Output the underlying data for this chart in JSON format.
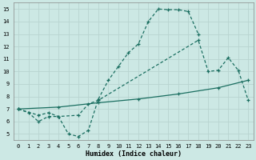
{
  "bg_color": "#cce8e4",
  "grid_color": "#b8d4d0",
  "line_color": "#1a6e60",
  "xlabel": "Humidex (Indice chaleur)",
  "xlim": [
    -0.5,
    23.5
  ],
  "ylim": [
    4.5,
    15.5
  ],
  "line1_x": [
    0,
    1,
    2,
    3,
    4,
    5,
    6,
    7,
    8,
    9,
    10,
    11,
    12,
    13,
    14,
    15,
    16,
    17,
    18
  ],
  "line1_y": [
    7.0,
    6.7,
    6.0,
    6.4,
    6.4,
    5.0,
    4.8,
    5.3,
    7.8,
    9.3,
    10.4,
    11.5,
    12.2,
    14.0,
    15.0,
    14.95,
    14.95,
    14.8,
    13.0
  ],
  "line2_x": [
    0,
    4,
    8,
    12,
    16,
    20,
    23
  ],
  "line2_y": [
    7.0,
    7.15,
    7.5,
    7.8,
    8.2,
    8.7,
    9.3
  ],
  "line3_x": [
    0,
    2,
    3,
    4,
    6,
    7,
    8,
    18,
    19,
    20,
    21,
    22,
    23
  ],
  "line3_y": [
    7.0,
    6.5,
    6.7,
    6.4,
    6.5,
    7.4,
    7.7,
    12.5,
    10.0,
    10.1,
    11.1,
    10.1,
    7.7
  ]
}
